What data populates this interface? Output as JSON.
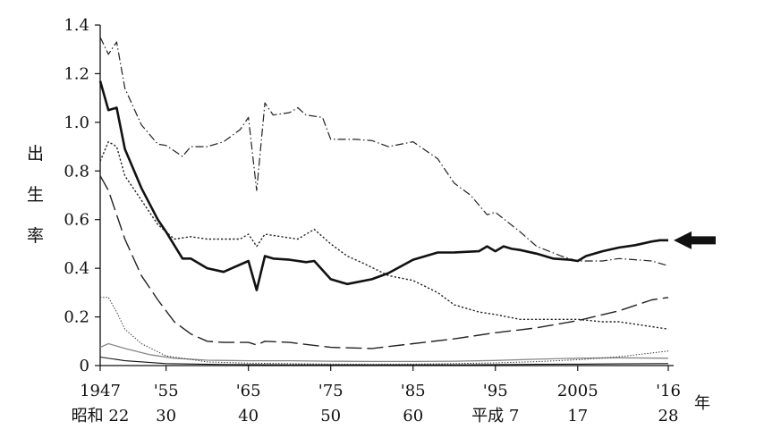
{
  "chart_data": {
    "type": "line",
    "ylabel": [
      "出",
      "生",
      "率"
    ],
    "x_unit": "年",
    "ylim": [
      0,
      1.4
    ],
    "yticks": [
      {
        "value": 0,
        "label": "0"
      },
      {
        "value": 0.2,
        "label": "0.2"
      },
      {
        "value": 0.4,
        "label": "0.4"
      },
      {
        "value": 0.6,
        "label": "0.6"
      },
      {
        "value": 0.8,
        "label": "0.8"
      },
      {
        "value": 1.0,
        "label": "1.0"
      },
      {
        "value": 1.2,
        "label": "1.2"
      },
      {
        "value": 1.4,
        "label": "1.4"
      }
    ],
    "xlim": [
      1947,
      2016
    ],
    "xticks": [
      {
        "value": 1947,
        "label": "1947",
        "era": "昭和 22"
      },
      {
        "value": 1955,
        "label": "'55",
        "era": "30"
      },
      {
        "value": 1965,
        "label": "'65",
        "era": "40"
      },
      {
        "value": 1975,
        "label": "'75",
        "era": "50"
      },
      {
        "value": 1985,
        "label": "'85",
        "era": "60"
      },
      {
        "value": 1995,
        "label": "'95",
        "era": "平成 7"
      },
      {
        "value": 2005,
        "label": "2005",
        "era": "17"
      },
      {
        "value": 2016,
        "label": "'16",
        "era": "28"
      }
    ],
    "highlight": {
      "series_index": 0,
      "marker": "arrow"
    },
    "series": [
      {
        "style": "solid-bold",
        "color": "#111111",
        "x": [
          1947,
          1948,
          1949,
          1950,
          1952,
          1954,
          1955,
          1957,
          1958,
          1960,
          1962,
          1963,
          1965,
          1966,
          1967,
          1968,
          1970,
          1972,
          1973,
          1975,
          1977,
          1980,
          1982,
          1985,
          1988,
          1990,
          1993,
          1994,
          1995,
          1996,
          1997,
          1998,
          2000,
          2002,
          2004,
          2005,
          2006,
          2008,
          2010,
          2012,
          2014,
          2015,
          2016
        ],
        "y": [
          1.17,
          1.05,
          1.06,
          0.89,
          0.73,
          0.6,
          0.55,
          0.44,
          0.44,
          0.4,
          0.385,
          0.4,
          0.43,
          0.31,
          0.45,
          0.44,
          0.435,
          0.425,
          0.43,
          0.355,
          0.335,
          0.355,
          0.38,
          0.435,
          0.465,
          0.465,
          0.47,
          0.49,
          0.47,
          0.49,
          0.48,
          0.475,
          0.46,
          0.44,
          0.435,
          0.43,
          0.45,
          0.47,
          0.485,
          0.495,
          0.51,
          0.515,
          0.515
        ]
      },
      {
        "style": "dash-dot",
        "color": "#222222",
        "x": [
          1947,
          1948,
          1949,
          1950,
          1952,
          1954,
          1955,
          1957,
          1958,
          1960,
          1962,
          1964,
          1965,
          1966,
          1967,
          1968,
          1970,
          1971,
          1972,
          1974,
          1975,
          1978,
          1980,
          1982,
          1985,
          1988,
          1990,
          1992,
          1994,
          1995,
          1998,
          2000,
          2003,
          2005,
          2008,
          2010,
          2012,
          2014,
          2016
        ],
        "y": [
          1.35,
          1.28,
          1.33,
          1.14,
          0.99,
          0.91,
          0.905,
          0.86,
          0.9,
          0.9,
          0.92,
          0.97,
          1.02,
          0.72,
          1.08,
          1.03,
          1.04,
          1.06,
          1.03,
          1.02,
          0.93,
          0.93,
          0.925,
          0.9,
          0.92,
          0.85,
          0.75,
          0.7,
          0.62,
          0.63,
          0.55,
          0.49,
          0.45,
          0.43,
          0.43,
          0.44,
          0.435,
          0.43,
          0.41
        ]
      },
      {
        "style": "dotted",
        "color": "#222222",
        "x": [
          1947,
          1948,
          1949,
          1950,
          1952,
          1954,
          1956,
          1958,
          1960,
          1962,
          1964,
          1965,
          1966,
          1967,
          1969,
          1971,
          1973,
          1975,
          1977,
          1979,
          1982,
          1985,
          1988,
          1990,
          1993,
          1995,
          1998,
          2000,
          2003,
          2005,
          2008,
          2010,
          2012,
          2014,
          2016
        ],
        "y": [
          0.84,
          0.92,
          0.9,
          0.78,
          0.68,
          0.58,
          0.52,
          0.53,
          0.52,
          0.52,
          0.52,
          0.54,
          0.49,
          0.54,
          0.53,
          0.52,
          0.56,
          0.5,
          0.45,
          0.42,
          0.37,
          0.35,
          0.3,
          0.25,
          0.22,
          0.21,
          0.19,
          0.19,
          0.19,
          0.19,
          0.18,
          0.18,
          0.17,
          0.16,
          0.15
        ]
      },
      {
        "style": "long-dash",
        "color": "#222222",
        "x": [
          1947,
          1948,
          1950,
          1952,
          1954,
          1956,
          1958,
          1960,
          1962,
          1965,
          1966,
          1967,
          1970,
          1975,
          1980,
          1985,
          1990,
          1995,
          2000,
          2005,
          2010,
          2014,
          2016
        ],
        "y": [
          0.78,
          0.72,
          0.52,
          0.37,
          0.27,
          0.18,
          0.13,
          0.1,
          0.095,
          0.095,
          0.085,
          0.1,
          0.095,
          0.075,
          0.07,
          0.09,
          0.11,
          0.135,
          0.155,
          0.185,
          0.225,
          0.27,
          0.28
        ]
      },
      {
        "style": "thin-dotted",
        "color": "#333333",
        "x": [
          1947,
          1948,
          1949,
          1950,
          1952,
          1955,
          1960,
          1965,
          1970,
          1975,
          1980,
          1985,
          1990,
          1995,
          2000,
          2005,
          2010,
          2016
        ],
        "y": [
          0.28,
          0.28,
          0.22,
          0.15,
          0.09,
          0.04,
          0.015,
          0.01,
          0.008,
          0.006,
          0.005,
          0.006,
          0.008,
          0.011,
          0.016,
          0.024,
          0.036,
          0.06
        ]
      },
      {
        "style": "thin-gray",
        "color": "#888888",
        "x": [
          1947,
          1948,
          1950,
          1953,
          1956,
          1960,
          1965,
          1970,
          1975,
          1980,
          1985,
          1990,
          1995,
          2000,
          2005,
          2010,
          2016
        ],
        "y": [
          0.075,
          0.09,
          0.07,
          0.045,
          0.03,
          0.022,
          0.02,
          0.02,
          0.018,
          0.017,
          0.017,
          0.018,
          0.021,
          0.026,
          0.03,
          0.032,
          0.03
        ]
      },
      {
        "style": "thin-solid",
        "color": "#111111",
        "x": [
          1947,
          1950,
          1955,
          1960,
          1965,
          1970,
          1975,
          1980,
          1985,
          1990,
          1995,
          2000,
          2005,
          2010,
          2016
        ],
        "y": [
          0.035,
          0.02,
          0.008,
          0.005,
          0.004,
          0.003,
          0.003,
          0.003,
          0.003,
          0.003,
          0.004,
          0.005,
          0.006,
          0.007,
          0.008
        ]
      }
    ]
  }
}
